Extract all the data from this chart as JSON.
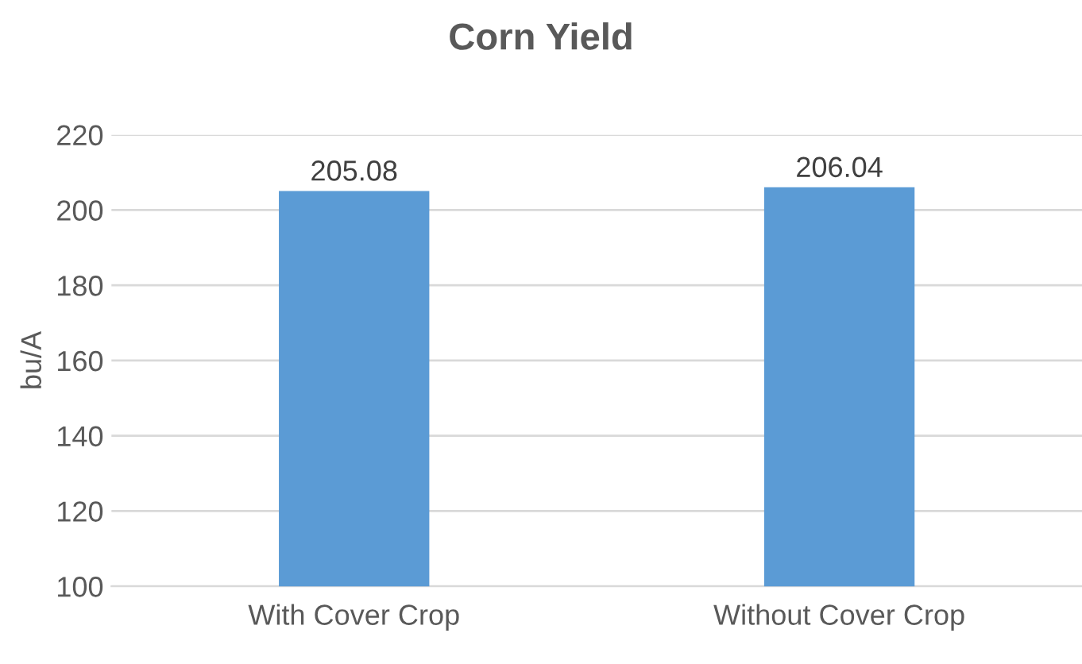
{
  "chart_data": {
    "type": "bar",
    "title": "Corn Yield",
    "ylabel": "bu/A",
    "categories": [
      "With Cover Crop",
      "Without Cover Crop"
    ],
    "values": [
      205.08,
      206.04
    ],
    "color": "#5b9bd5",
    "ylim": [
      100,
      220
    ],
    "yticks": [
      100,
      120,
      140,
      160,
      180,
      200,
      220
    ],
    "grid": "y",
    "data_labels": true
  }
}
